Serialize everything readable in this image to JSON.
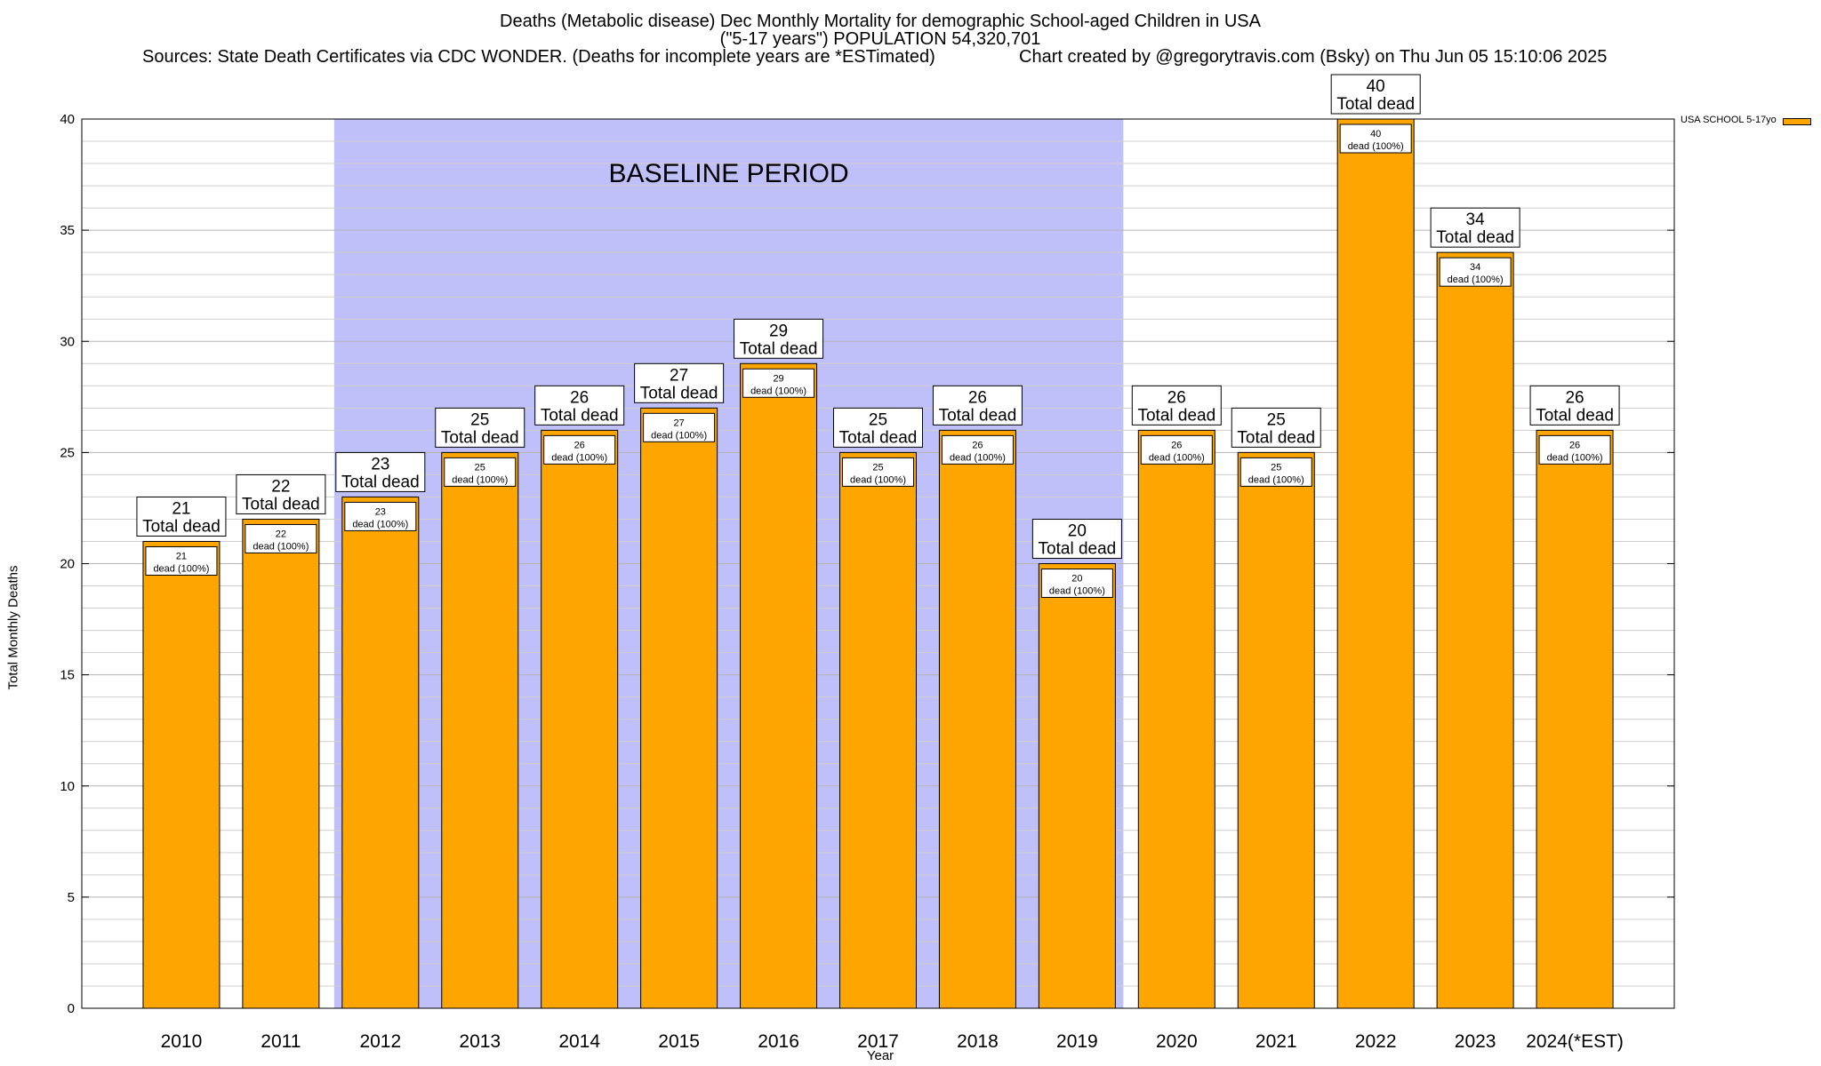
{
  "chart_data": {
    "type": "bar",
    "title": "Deaths (Metabolic disease) Dec Monthly Mortality for demographic School-aged Children in USA",
    "subtitle": "(\"5-17 years\") POPULATION 54,320,701",
    "sources": "Sources: State Death Certificates via CDC WONDER. (Deaths for incomplete years are *ESTimated)",
    "credit": "Chart created by @gregorytravis.com (Bsky) on Thu Jun 05 15:10:06 2025",
    "xlabel": "Year",
    "ylabel": "Total Monthly Deaths",
    "ylim": [
      0,
      40
    ],
    "yticks": [
      0,
      5,
      10,
      15,
      20,
      25,
      30,
      35,
      40
    ],
    "grid": true,
    "legend_position": "top-right",
    "categories": [
      "2010",
      "2011",
      "2012",
      "2013",
      "2014",
      "2015",
      "2016",
      "2017",
      "2018",
      "2019",
      "2020",
      "2021",
      "2022",
      "2023",
      "2024(*EST)"
    ],
    "series": [
      {
        "name": "USA SCHOOL 5-17yo",
        "color": "#ffa500",
        "values": [
          21,
          22,
          23,
          25,
          26,
          27,
          29,
          25,
          26,
          20,
          26,
          25,
          40,
          34,
          26
        ]
      }
    ],
    "top_label_suffix": "Total dead",
    "inner_label_suffix": "dead (100%)",
    "baseline_region": {
      "label": "BASELINE PERIOD",
      "start": "2012",
      "end": "2019",
      "color": "#bfbff9"
    }
  }
}
